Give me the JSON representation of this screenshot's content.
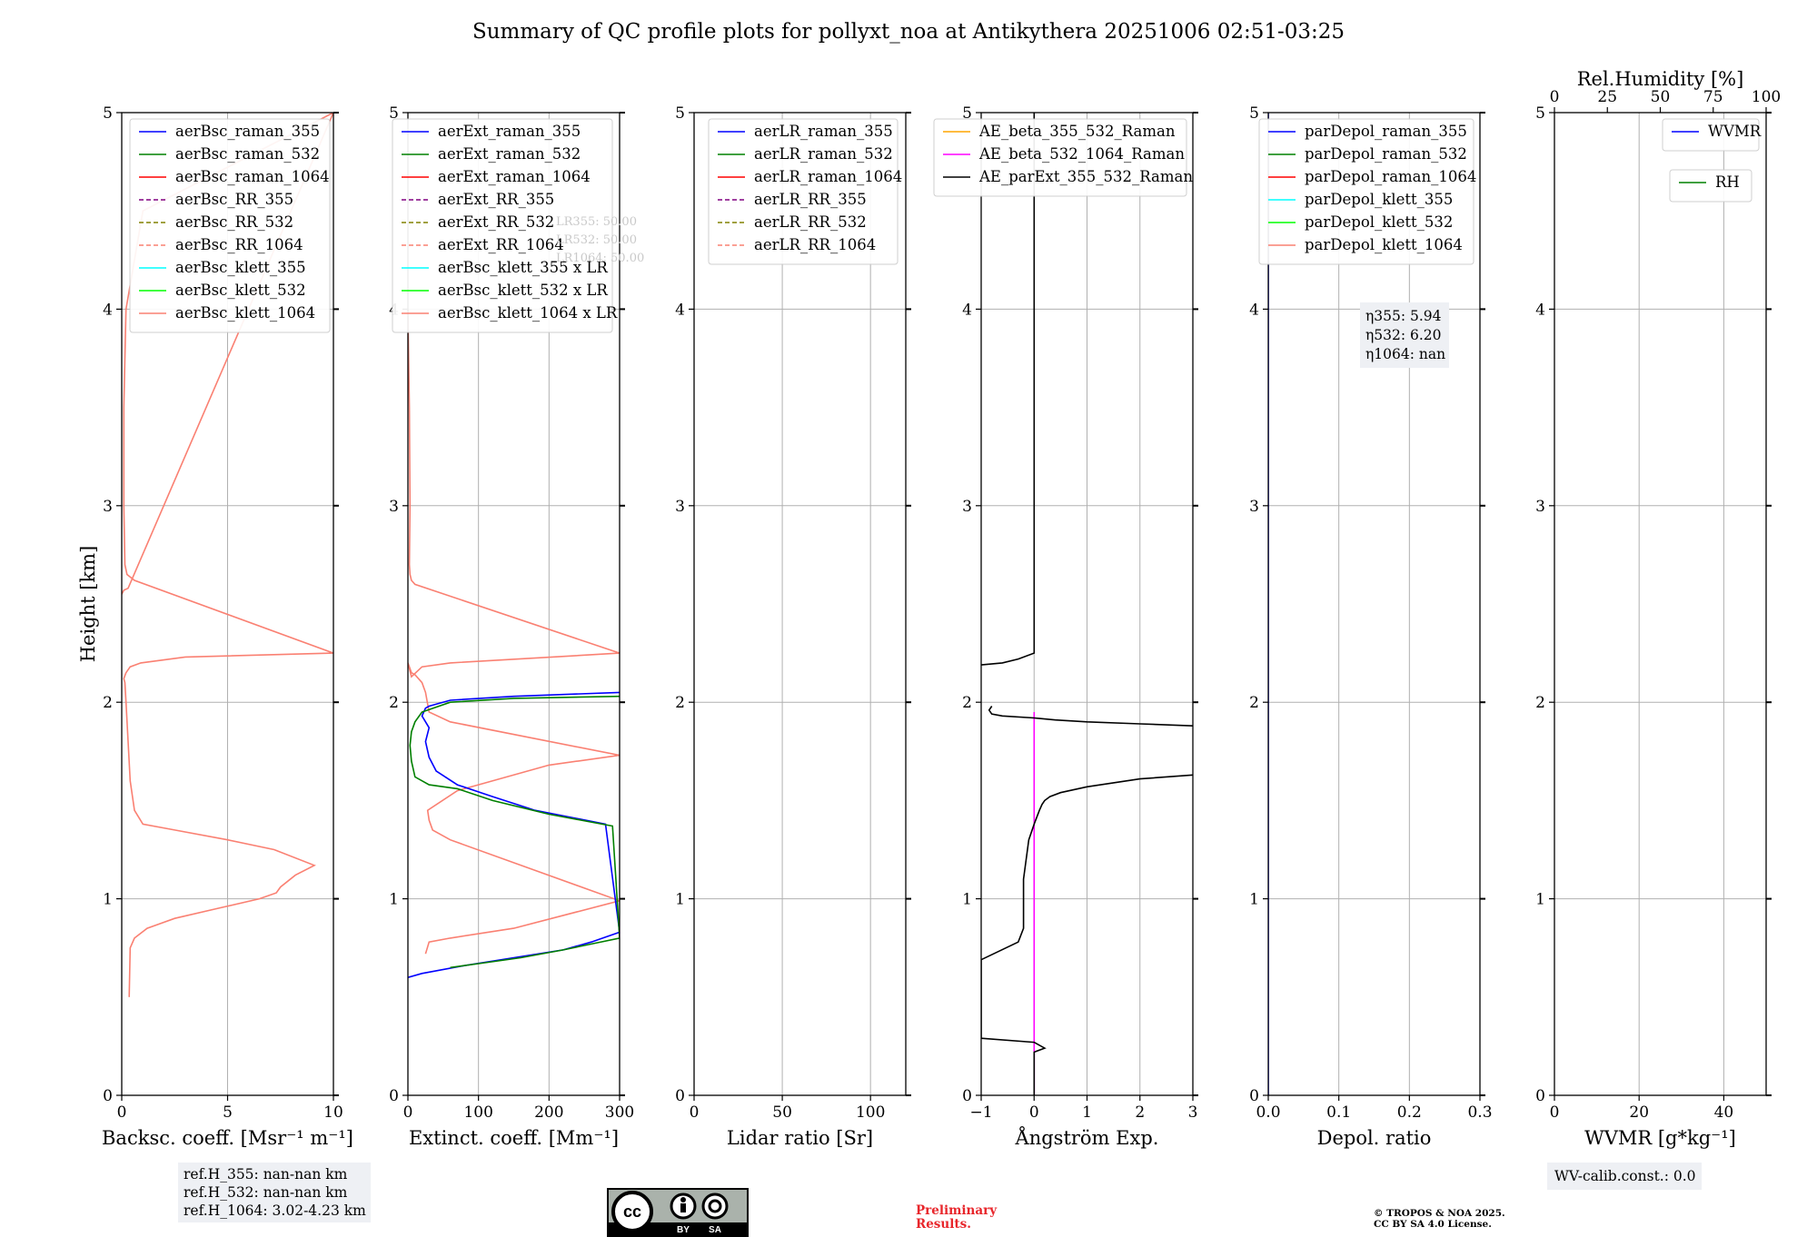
{
  "title": "Summary of QC profile plots for pollyxt_noa at Antikythera 20251006 02:51-03:25",
  "colors": {
    "blue": "#0000ff",
    "green": "#008000",
    "red": "#ff0000",
    "purple": "#800080",
    "olive": "#808000",
    "salmon": "#fa8072",
    "cyan": "#00ffff",
    "lime": "#00ff00",
    "orange": "#ffa500",
    "magenta": "#ff00ff",
    "black": "#000000"
  },
  "chart_data": [
    {
      "id": "bsc",
      "type": "line",
      "xlabel": "Backsc. coeff. [Msr$^{-1}$ m$^{-1}$]",
      "xlabel_display": "Backsc. coeff. [Msr⁻¹ m⁻¹]",
      "ylabel": "Height [km]",
      "xlim": [
        0,
        10
      ],
      "ylim": [
        0,
        5
      ],
      "xticks": [
        0,
        5,
        10
      ],
      "yticks": [
        0,
        1,
        2,
        3,
        4,
        5
      ],
      "legend": [
        {
          "label": "aerBsc_raman_355",
          "color": "blue",
          "dash": false
        },
        {
          "label": "aerBsc_raman_532",
          "color": "green",
          "dash": false
        },
        {
          "label": "aerBsc_raman_1064",
          "color": "red",
          "dash": false
        },
        {
          "label": "aerBsc_RR_355",
          "color": "purple",
          "dash": true
        },
        {
          "label": "aerBsc_RR_532",
          "color": "olive",
          "dash": true
        },
        {
          "label": "aerBsc_RR_1064",
          "color": "salmon",
          "dash": true
        },
        {
          "label": "aerBsc_klett_355",
          "color": "cyan",
          "dash": false
        },
        {
          "label": "aerBsc_klett_532",
          "color": "lime",
          "dash": false
        },
        {
          "label": "aerBsc_klett_1064",
          "color": "salmon",
          "dash": false
        }
      ],
      "series": [
        {
          "name": "aerBsc_klett_1064",
          "color": "salmon",
          "x": [
            0.35,
            0.4,
            0.6,
            1.2,
            2.5,
            4.5,
            6.5,
            7.3,
            7.5,
            8.2,
            9.1,
            7.2,
            5.0,
            2.5,
            1.0,
            0.6,
            0.4,
            0.3,
            0.2,
            0.15,
            0.1,
            0.2,
            0.4,
            0.9,
            3.0,
            10.0,
            0.6,
            0.25,
            0.15,
            0.1,
            0.1,
            0.2,
            1.0,
            10.0,
            0.3,
            0.1,
            0.05,
            0.0,
            0.0
          ],
          "y": [
            0.5,
            0.75,
            0.8,
            0.85,
            0.9,
            0.95,
            1.0,
            1.03,
            1.06,
            1.12,
            1.17,
            1.25,
            1.3,
            1.35,
            1.38,
            1.45,
            1.6,
            1.8,
            2.0,
            2.1,
            2.12,
            2.15,
            2.18,
            2.2,
            2.23,
            2.25,
            2.62,
            2.65,
            2.7,
            3.0,
            3.5,
            4.0,
            4.5,
            5.0,
            2.58,
            2.57,
            2.56,
            2.55,
            2.56
          ]
        }
      ],
      "extra": {
        "lines": [
          "ref.H_355: nan-nan km",
          "ref.H_532: nan-nan km",
          "ref.H_1064: 3.02-4.23 km"
        ]
      }
    },
    {
      "id": "ext",
      "type": "line",
      "xlabel_display": "Extinct. coeff. [Mm⁻¹]",
      "xlim": [
        0,
        300
      ],
      "ylim": [
        0,
        5
      ],
      "xticks": [
        0,
        100,
        200,
        300
      ],
      "yticks": [
        0,
        1,
        2,
        3,
        4,
        5
      ],
      "legend": [
        {
          "label": "aerExt_raman_355",
          "color": "blue",
          "dash": false
        },
        {
          "label": "aerExt_raman_532",
          "color": "green",
          "dash": false
        },
        {
          "label": "aerExt_raman_1064",
          "color": "red",
          "dash": false
        },
        {
          "label": "aerExt_RR_355",
          "color": "purple",
          "dash": true
        },
        {
          "label": "aerExt_RR_532",
          "color": "olive",
          "dash": true
        },
        {
          "label": "aerExt_RR_1064",
          "color": "salmon",
          "dash": true
        },
        {
          "label": "aerBsc_klett_355 x LR",
          "color": "cyan",
          "dash": false
        },
        {
          "label": "aerBsc_klett_532 x LR",
          "color": "lime",
          "dash": false
        },
        {
          "label": "aerBsc_klett_1064 x LR",
          "color": "salmon",
          "dash": false
        }
      ],
      "lr_labels": [
        "LR355: 50.00",
        "LR532: 50.00",
        "LR1064: 50.00"
      ],
      "series": [
        {
          "name": "aerBsc_klett_1064 x LR",
          "color": "salmon",
          "x": [
            25,
            30,
            60,
            150,
            300,
            60,
            35,
            30,
            28,
            70,
            200,
            300,
            60,
            30,
            25,
            20,
            15,
            10,
            5,
            0,
            5,
            20,
            60,
            300,
            10,
            5,
            3,
            2,
            3,
            2,
            0
          ],
          "y": [
            0.72,
            0.78,
            0.8,
            0.85,
            0.99,
            1.3,
            1.35,
            1.4,
            1.45,
            1.55,
            1.68,
            1.73,
            1.9,
            1.95,
            2.05,
            2.1,
            2.12,
            2.14,
            2.15,
            2.2,
            2.13,
            2.18,
            2.2,
            2.25,
            2.6,
            2.62,
            2.65,
            2.7,
            3.0,
            3.5,
            4.0
          ]
        },
        {
          "name": "aerExt_raman_355",
          "color": "blue",
          "x": [
            0,
            20,
            80,
            150,
            220,
            260,
            300,
            280,
            180,
            120,
            70,
            40,
            30,
            25,
            30,
            20,
            25,
            30,
            60,
            150,
            300
          ],
          "y": [
            0.6,
            0.62,
            0.66,
            0.7,
            0.74,
            0.78,
            0.83,
            1.38,
            1.45,
            1.52,
            1.58,
            1.65,
            1.72,
            1.8,
            1.87,
            1.93,
            1.97,
            1.98,
            2.01,
            2.03,
            2.05
          ]
        },
        {
          "name": "aerExt_raman_532",
          "color": "green",
          "x": [
            60,
            100,
            160,
            220,
            260,
            300,
            290,
            200,
            120,
            70,
            30,
            10,
            5,
            3,
            5,
            10,
            20,
            60,
            150,
            300
          ],
          "y": [
            0.65,
            0.67,
            0.7,
            0.74,
            0.77,
            0.8,
            1.37,
            1.43,
            1.5,
            1.56,
            1.58,
            1.62,
            1.7,
            1.78,
            1.85,
            1.9,
            1.95,
            2.0,
            2.02,
            2.03
          ]
        }
      ]
    },
    {
      "id": "lr",
      "type": "line",
      "xlabel_display": "Lidar ratio [Sr]",
      "xlim": [
        0,
        120
      ],
      "ylim": [
        0,
        5
      ],
      "xticks": [
        0,
        50,
        100
      ],
      "yticks": [
        0,
        1,
        2,
        3,
        4,
        5
      ],
      "legend": [
        {
          "label": "aerLR_raman_355",
          "color": "blue",
          "dash": false
        },
        {
          "label": "aerLR_raman_532",
          "color": "green",
          "dash": false
        },
        {
          "label": "aerLR_raman_1064",
          "color": "red",
          "dash": false
        },
        {
          "label": "aerLR_RR_355",
          "color": "purple",
          "dash": true
        },
        {
          "label": "aerLR_RR_532",
          "color": "olive",
          "dash": true
        },
        {
          "label": "aerLR_RR_1064",
          "color": "salmon",
          "dash": true
        }
      ],
      "series": []
    },
    {
      "id": "ae",
      "type": "line",
      "xlabel_display": "Ångström Exp.",
      "xlim": [
        -1,
        3
      ],
      "ylim": [
        0,
        5
      ],
      "xticks": [
        -1,
        0,
        1,
        2,
        3
      ],
      "xtick_labels": [
        "−1",
        "0",
        "1",
        "2",
        "3"
      ],
      "yticks": [
        0,
        1,
        2,
        3,
        4,
        5
      ],
      "legend": [
        {
          "label": "AE_beta_355_532_Raman",
          "color": "orange",
          "dash": false
        },
        {
          "label": "AE_beta_532_1064_Raman",
          "color": "magenta",
          "dash": false
        },
        {
          "label": "AE_parExt_355_532_Raman",
          "color": "black",
          "dash": false
        }
      ],
      "series": [
        {
          "name": "AE_beta_532_1064_Raman",
          "color": "magenta",
          "x": [
            0,
            0
          ],
          "y": [
            0,
            1.95
          ]
        },
        {
          "name": "AE_parExt_355_532_Raman",
          "color": "black",
          "x": [
            0,
            0,
            0.2,
            0,
            -1,
            -1,
            -0.3,
            -0.2,
            -0.2,
            -0.2,
            -0.15,
            -0.1,
            0,
            0.1,
            0.15,
            0.2,
            0.3,
            0.5,
            1.0,
            2.0,
            3.0
          ],
          "y": [
            0,
            0.22,
            0.24,
            0.27,
            0.29,
            0.69,
            0.78,
            0.85,
            1.0,
            1.1,
            1.2,
            1.3,
            1.38,
            1.45,
            1.48,
            1.5,
            1.52,
            1.54,
            1.57,
            1.61,
            1.63
          ]
        },
        {
          "name": "AE_parExt_355_532_Raman",
          "color": "black",
          "x": [
            3.0,
            2.0,
            1.0,
            0.4,
            0,
            -0.6,
            -0.8,
            -0.85,
            -0.8
          ],
          "y": [
            1.88,
            1.89,
            1.9,
            1.91,
            1.92,
            1.93,
            1.94,
            1.96,
            1.98
          ]
        },
        {
          "name": "AE_parExt_355_532_Raman",
          "color": "black",
          "x": [
            -1,
            -0.6,
            -0.3,
            0,
            0,
            0
          ],
          "y": [
            2.19,
            2.2,
            2.22,
            2.25,
            3.0,
            5.0
          ]
        }
      ]
    },
    {
      "id": "depol",
      "type": "line",
      "xlabel_display": "Depol. ratio",
      "xlim": [
        0,
        0.3
      ],
      "ylim": [
        0,
        5
      ],
      "xticks": [
        0,
        0.1,
        0.2,
        0.3
      ],
      "xtick_labels": [
        "0.0",
        "0.1",
        "0.2",
        "0.3"
      ],
      "yticks": [
        0,
        1,
        2,
        3,
        4,
        5
      ],
      "legend": [
        {
          "label": "parDepol_raman_355",
          "color": "blue",
          "dash": false
        },
        {
          "label": "parDepol_raman_532",
          "color": "green",
          "dash": false
        },
        {
          "label": "parDepol_raman_1064",
          "color": "red",
          "dash": false
        },
        {
          "label": "parDepol_klett_355",
          "color": "cyan",
          "dash": false
        },
        {
          "label": "parDepol_klett_532",
          "color": "lime",
          "dash": false
        },
        {
          "label": "parDepol_klett_1064",
          "color": "salmon",
          "dash": false
        }
      ],
      "eta": [
        "η355: 5.94",
        "η532: 6.20",
        "η1064: nan"
      ],
      "series": [
        {
          "name": "depol-zero",
          "color": "blue",
          "x": [
            0.0,
            0.0
          ],
          "y": [
            0,
            5
          ]
        }
      ]
    },
    {
      "id": "wv",
      "type": "line",
      "xlabel_display": "WVMR [g*kg⁻¹]",
      "top_label": "Rel.Humidity [%]",
      "xlim": [
        0,
        50
      ],
      "ylim": [
        0,
        5
      ],
      "xticks": [
        0,
        20,
        40
      ],
      "yticks": [
        0,
        1,
        2,
        3,
        4,
        5
      ],
      "top_xlim": [
        0,
        100
      ],
      "top_xticks": [
        0,
        25,
        50,
        75,
        100
      ],
      "legend": [
        {
          "label": "WVMR",
          "color": "blue",
          "dash": false
        }
      ],
      "legend2": [
        {
          "label": "RH",
          "color": "green",
          "dash": false
        }
      ],
      "calib": "WV-calib.const.: 0.0",
      "series": []
    }
  ],
  "footer": {
    "preliminary_line1": "Preliminary",
    "preliminary_line2": "Results.",
    "copyright_line1": "© TROPOS & NOA 2025.",
    "copyright_line2": "CC BY SA 4.0 License.",
    "cc_by": "BY",
    "cc_sa": "SA"
  }
}
